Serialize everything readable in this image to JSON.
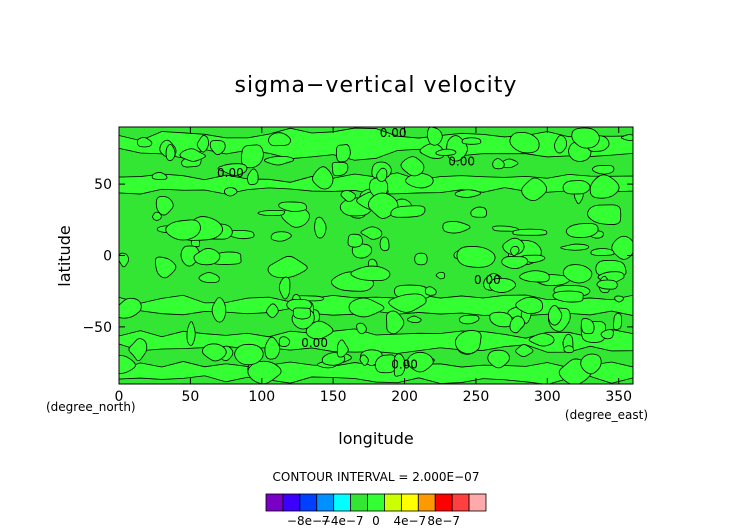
{
  "chart_data": {
    "type": "heatmap",
    "title": "sigma−vertical velocity",
    "xlabel": "longitude",
    "ylabel": "latitude",
    "x_units": "(degree_east)",
    "y_units": "(degree_north)",
    "xlim": [
      0,
      360
    ],
    "ylim": [
      -90,
      90
    ],
    "x_ticks": [
      {
        "value": 0,
        "label": "0"
      },
      {
        "value": 50,
        "label": "50"
      },
      {
        "value": 100,
        "label": "100"
      },
      {
        "value": 150,
        "label": "150"
      },
      {
        "value": 200,
        "label": "200"
      },
      {
        "value": 250,
        "label": "250"
      },
      {
        "value": 300,
        "label": "300"
      },
      {
        "value": 350,
        "label": "350"
      }
    ],
    "y_ticks": [
      {
        "value": 50,
        "label": "50"
      },
      {
        "value": 0,
        "label": "0"
      },
      {
        "value": -50,
        "label": "−50"
      }
    ],
    "contour_interval_text": "CONTOUR INTERVAL = 2.000E−07",
    "contour_labels": [
      {
        "text": "0.00",
        "lon": 192,
        "lat": 83
      },
      {
        "text": "0.00",
        "lon": 240,
        "lat": 63
      },
      {
        "text": "0.00",
        "lon": 78,
        "lat": 55
      },
      {
        "text": "0.00",
        "lon": 258,
        "lat": -20
      },
      {
        "text": "0.00",
        "lon": 137,
        "lat": -64
      },
      {
        "text": "0.00",
        "lon": 200,
        "lat": -79
      }
    ],
    "colorbar": {
      "colors": [
        "#7a00c8",
        "#3c00ff",
        "#0040ff",
        "#0090ff",
        "#00ffff",
        "#33e633",
        "#33ff33",
        "#ccff00",
        "#ffff00",
        "#ff9900",
        "#ff0000",
        "#ff4040",
        "#ffaaaa"
      ],
      "tick_labels": [
        "−8e−7",
        "−4e−7",
        "0",
        "4e−7",
        "8e−7"
      ],
      "tick_values": [
        -8e-07,
        -4e-07,
        0,
        4e-07,
        8e-07
      ]
    },
    "field_colors": {
      "background_fill": "#33e633",
      "positive_fill": "#33ff33",
      "line": "#000000"
    }
  }
}
